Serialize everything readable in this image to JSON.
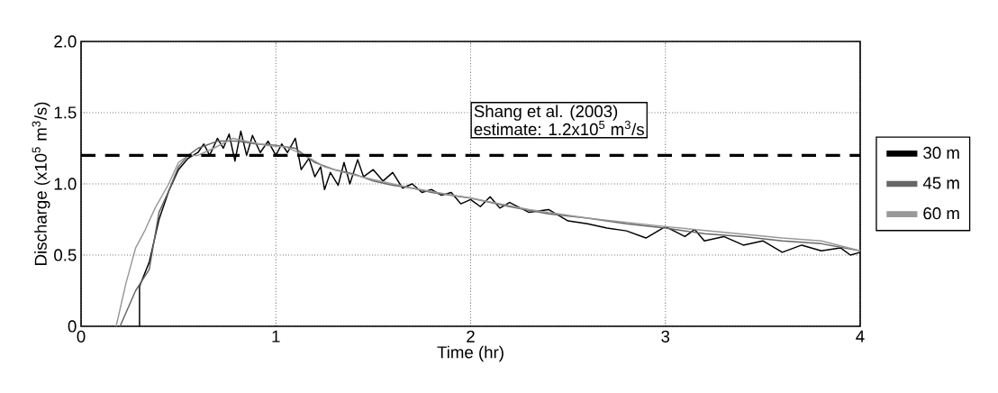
{
  "chart_data": {
    "type": "line",
    "xlabel": "Time (hr)",
    "ylabel": "Discharge (x10$^{5}$ m$^{3}$/s)",
    "xlim": [
      0,
      4
    ],
    "xticks": [
      0,
      1,
      2,
      3,
      4
    ],
    "ylim": [
      0,
      2
    ],
    "yticks": [
      {
        "value": 0,
        "label": "0"
      },
      {
        "value": 0.5,
        "label": "0.5"
      },
      {
        "value": 1,
        "label": "1.0"
      },
      {
        "value": 1.5,
        "label": "1.5"
      },
      {
        "value": 2,
        "label": "2.0"
      }
    ],
    "grid": true,
    "legend": "right",
    "line_style": "solid",
    "marker": "none",
    "ref_lines": [
      {
        "axis": "y",
        "value": 1.2,
        "color": "#000000",
        "line_style": "dashed"
      }
    ],
    "annotations": [
      "Shang et al. (2003)",
      "estimate: 1.2x10$^{5}$ m$^{3}$/s"
    ],
    "series": [
      {
        "name": "30 m",
        "color": "#000000",
        "x": [
          0.3,
          0.3,
          0.35,
          0.4,
          0.45,
          0.5,
          0.55,
          0.6,
          0.63,
          0.66,
          0.7,
          0.73,
          0.76,
          0.79,
          0.82,
          0.85,
          0.88,
          0.92,
          0.96,
          1.0,
          1.03,
          1.06,
          1.1,
          1.13,
          1.17,
          1.2,
          1.23,
          1.25,
          1.28,
          1.32,
          1.35,
          1.38,
          1.42,
          1.45,
          1.5,
          1.55,
          1.6,
          1.65,
          1.7,
          1.75,
          1.8,
          1.85,
          1.9,
          1.95,
          2.0,
          2.05,
          2.1,
          2.15,
          2.2,
          2.3,
          2.4,
          2.5,
          2.6,
          2.7,
          2.8,
          2.9,
          3.0,
          3.1,
          3.15,
          3.2,
          3.3,
          3.4,
          3.5,
          3.6,
          3.7,
          3.8,
          3.9,
          3.95,
          4.0
        ],
        "values": [
          0,
          0.28,
          0.45,
          0.75,
          0.95,
          1.1,
          1.18,
          1.22,
          1.28,
          1.2,
          1.32,
          1.25,
          1.35,
          1.16,
          1.37,
          1.2,
          1.34,
          1.22,
          1.3,
          1.2,
          1.28,
          1.22,
          1.32,
          1.1,
          1.18,
          1.05,
          1.12,
          0.96,
          1.08,
          0.99,
          1.15,
          1.0,
          1.17,
          1.05,
          1.1,
          1.02,
          1.08,
          0.97,
          1.0,
          0.94,
          0.96,
          0.92,
          0.94,
          0.86,
          0.89,
          0.84,
          0.91,
          0.83,
          0.87,
          0.8,
          0.82,
          0.74,
          0.72,
          0.69,
          0.67,
          0.62,
          0.7,
          0.63,
          0.68,
          0.6,
          0.63,
          0.57,
          0.6,
          0.52,
          0.57,
          0.53,
          0.55,
          0.5,
          0.52
        ]
      },
      {
        "name": "45 m",
        "color": "#666666",
        "x": [
          0.2,
          0.28,
          0.35,
          0.4,
          0.45,
          0.5,
          0.55,
          0.6,
          0.7,
          0.8,
          0.9,
          1.0,
          1.1,
          1.2,
          1.3,
          1.4,
          1.5,
          1.6,
          1.7,
          1.8,
          2.0,
          2.2,
          2.4,
          2.6,
          2.8,
          3.0,
          3.2,
          3.4,
          3.6,
          3.8,
          4.0
        ],
        "values": [
          0,
          0.25,
          0.4,
          0.8,
          0.95,
          1.12,
          1.2,
          1.25,
          1.3,
          1.3,
          1.28,
          1.27,
          1.25,
          1.15,
          1.1,
          1.07,
          1.02,
          0.99,
          0.97,
          0.94,
          0.9,
          0.84,
          0.79,
          0.76,
          0.72,
          0.69,
          0.65,
          0.63,
          0.6,
          0.58,
          0.53
        ]
      },
      {
        "name": "60 m",
        "color": "#999999",
        "x": [
          0.18,
          0.23,
          0.28,
          0.33,
          0.38,
          0.45,
          0.5,
          0.55,
          0.6,
          0.68,
          0.78,
          0.85,
          0.95,
          1.05,
          1.15,
          1.25,
          1.35,
          1.5,
          1.7,
          2.0,
          2.3,
          2.6,
          3.0,
          3.3,
          3.6,
          3.8,
          4.0
        ],
        "values": [
          0,
          0.3,
          0.55,
          0.68,
          0.83,
          1.0,
          1.15,
          1.2,
          1.2,
          1.25,
          1.32,
          1.3,
          1.27,
          1.26,
          1.2,
          1.12,
          1.08,
          1.03,
          0.97,
          0.9,
          0.82,
          0.76,
          0.7,
          0.66,
          0.62,
          0.6,
          0.53
        ]
      }
    ]
  }
}
